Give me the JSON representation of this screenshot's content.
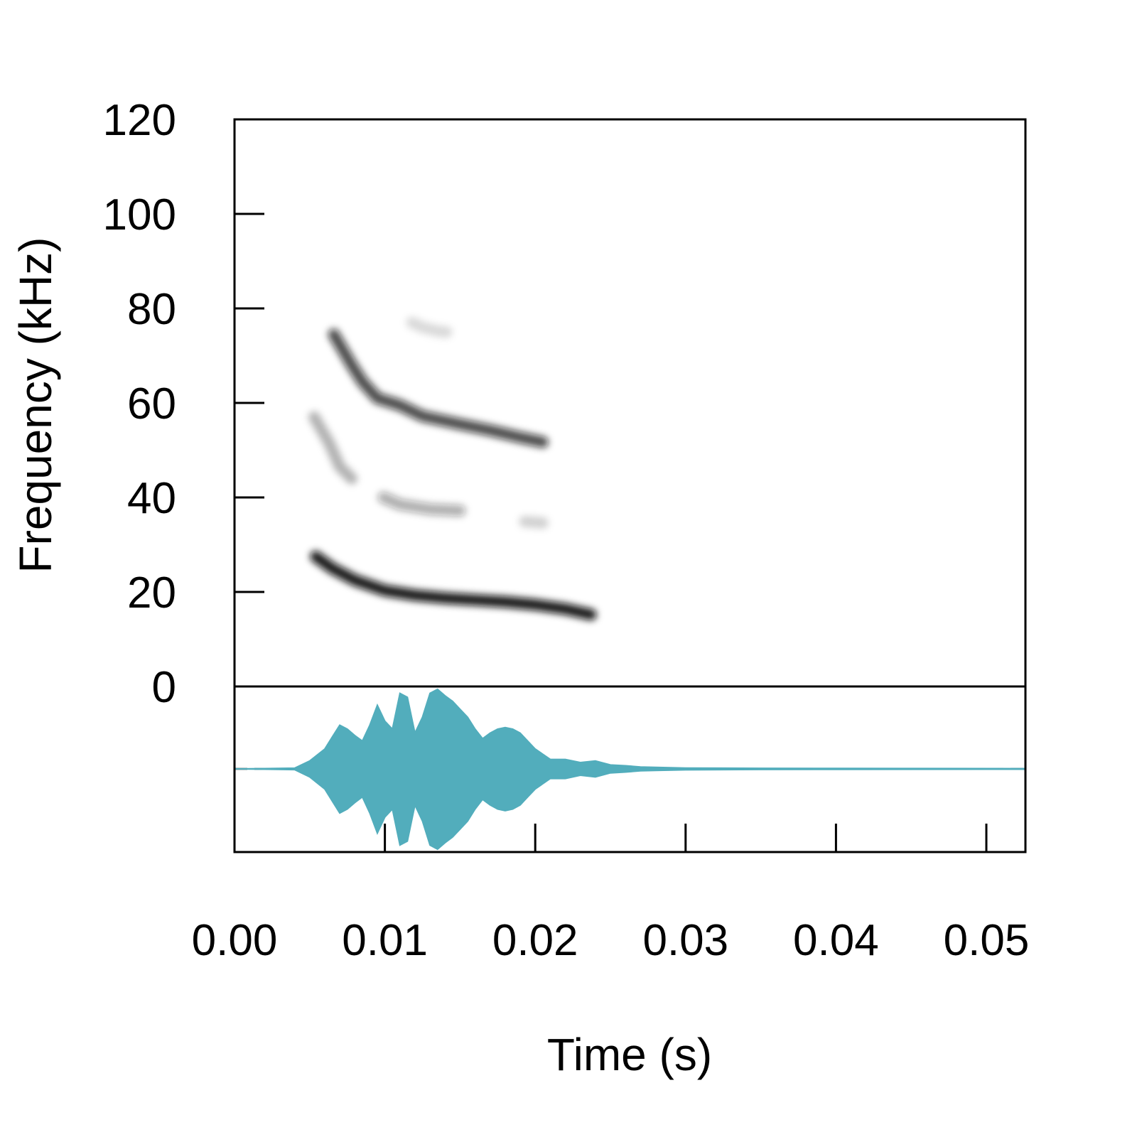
{
  "chart_data": {
    "type": "spectrogram",
    "xlabel": "Time (s)",
    "ylabel": "Frequency (kHz)",
    "xlim": [
      0,
      0.0526
    ],
    "ylim": [
      0,
      120
    ],
    "x_ticks": [
      "0.00",
      "0.01",
      "0.02",
      "0.03",
      "0.04",
      "0.05"
    ],
    "x_tick_values": [
      0,
      0.01,
      0.02,
      0.03,
      0.04,
      0.05
    ],
    "y_ticks": [
      "0",
      "20",
      "40",
      "60",
      "80",
      "100",
      "120"
    ],
    "y_tick_values": [
      0,
      20,
      40,
      60,
      80,
      100,
      120
    ],
    "spectrogram_bands": [
      {
        "name": "fundamental",
        "intensity": 0.95,
        "points": [
          [
            0.0054,
            27.5
          ],
          [
            0.0065,
            25.0
          ],
          [
            0.008,
            22.5
          ],
          [
            0.01,
            20.3
          ],
          [
            0.012,
            19.3
          ],
          [
            0.014,
            18.7
          ],
          [
            0.016,
            18.3
          ],
          [
            0.018,
            17.9
          ],
          [
            0.02,
            17.3
          ],
          [
            0.022,
            16.4
          ],
          [
            0.0237,
            15.2
          ]
        ]
      },
      {
        "name": "second-harmonic-early",
        "intensity": 0.3,
        "points": [
          [
            0.0053,
            57.0
          ],
          [
            0.0063,
            51.5
          ],
          [
            0.007,
            46.5
          ],
          [
            0.0078,
            44.0
          ]
        ]
      },
      {
        "name": "second-harmonic",
        "intensity": 0.35,
        "points": [
          [
            0.0099,
            40.0
          ],
          [
            0.011,
            38.5
          ],
          [
            0.013,
            37.5
          ],
          [
            0.015,
            37.2
          ]
        ]
      },
      {
        "name": "second-harmonic-tail",
        "intensity": 0.18,
        "points": [
          [
            0.0193,
            34.9
          ],
          [
            0.0205,
            34.6
          ]
        ]
      },
      {
        "name": "third-harmonic",
        "intensity": 0.75,
        "points": [
          [
            0.0066,
            74.5
          ],
          [
            0.0078,
            68.0
          ],
          [
            0.0085,
            64.5
          ],
          [
            0.0095,
            61.0
          ],
          [
            0.011,
            59.5
          ],
          [
            0.0125,
            57.2
          ],
          [
            0.015,
            55.5
          ],
          [
            0.017,
            54.2
          ],
          [
            0.019,
            52.7
          ],
          [
            0.0205,
            51.7
          ]
        ]
      },
      {
        "name": "third-harmonic-faint",
        "intensity": 0.15,
        "points": [
          [
            0.0118,
            77.0
          ],
          [
            0.0125,
            76.0
          ],
          [
            0.0135,
            75.2
          ],
          [
            0.0141,
            75.0
          ]
        ]
      }
    ],
    "oscillogram": {
      "color": "#52adbc",
      "baseline_color": "#808080",
      "baseline_style": "dashed",
      "envelope": [
        [
          0.0,
          0.0
        ],
        [
          0.004,
          0.01
        ],
        [
          0.005,
          0.1
        ],
        [
          0.006,
          0.25
        ],
        [
          0.0065,
          0.4
        ],
        [
          0.007,
          0.55
        ],
        [
          0.0075,
          0.5
        ],
        [
          0.008,
          0.42
        ],
        [
          0.0085,
          0.35
        ],
        [
          0.009,
          0.55
        ],
        [
          0.0095,
          0.8
        ],
        [
          0.01,
          0.6
        ],
        [
          0.0105,
          0.5
        ],
        [
          0.011,
          0.95
        ],
        [
          0.0115,
          0.9
        ],
        [
          0.012,
          0.45
        ],
        [
          0.0125,
          0.65
        ],
        [
          0.013,
          0.95
        ],
        [
          0.0135,
          1.0
        ],
        [
          0.014,
          0.92
        ],
        [
          0.0145,
          0.85
        ],
        [
          0.015,
          0.75
        ],
        [
          0.0155,
          0.65
        ],
        [
          0.016,
          0.5
        ],
        [
          0.0165,
          0.38
        ],
        [
          0.017,
          0.45
        ],
        [
          0.0175,
          0.5
        ],
        [
          0.018,
          0.52
        ],
        [
          0.0185,
          0.5
        ],
        [
          0.019,
          0.45
        ],
        [
          0.0195,
          0.35
        ],
        [
          0.02,
          0.25
        ],
        [
          0.021,
          0.12
        ],
        [
          0.022,
          0.12
        ],
        [
          0.023,
          0.08
        ],
        [
          0.024,
          0.1
        ],
        [
          0.025,
          0.05
        ],
        [
          0.026,
          0.04
        ],
        [
          0.027,
          0.025
        ],
        [
          0.028,
          0.02
        ],
        [
          0.03,
          0.012
        ],
        [
          0.035,
          0.008
        ],
        [
          0.04,
          0.006
        ],
        [
          0.045,
          0.005
        ],
        [
          0.0526,
          0.004
        ]
      ]
    }
  }
}
